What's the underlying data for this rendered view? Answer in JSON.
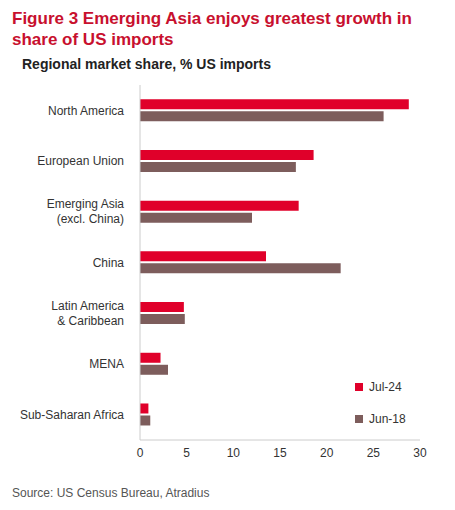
{
  "chart_data": {
    "type": "bar",
    "title": "Figure 3 Emerging Asia enjoys greatest growth in share of US imports",
    "subtitle": "Regional market share, % US imports",
    "source": "Source: US Census Bureau, Atradius",
    "orientation": "horizontal",
    "categories": [
      "North America",
      "European Union",
      "Emerging Asia (excl. China)",
      "China",
      "Latin America & Caribbean",
      "MENA",
      "Sub-Saharan Africa"
    ],
    "series": [
      {
        "name": "Jul-24",
        "color": "#e0002a",
        "values": [
          28.8,
          18.6,
          17.0,
          13.5,
          4.7,
          2.2,
          0.9
        ]
      },
      {
        "name": "Jun-18",
        "color": "#7d5d5c",
        "values": [
          26.1,
          16.7,
          12.0,
          21.5,
          4.8,
          3.0,
          1.1
        ]
      }
    ],
    "xlim": [
      0,
      30
    ],
    "xticks": [
      0,
      5,
      10,
      15,
      20,
      25,
      30
    ],
    "grid": false,
    "legend": "lower right"
  }
}
